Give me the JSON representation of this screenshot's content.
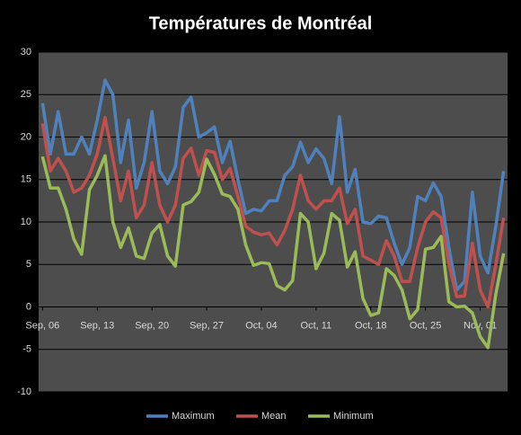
{
  "chart_data": {
    "type": "line",
    "title": "Températures de Montréal",
    "categories": [
      "Sep, 06",
      null,
      null,
      null,
      null,
      null,
      null,
      "Sep, 13",
      null,
      null,
      null,
      null,
      null,
      null,
      "Sep, 20",
      null,
      null,
      null,
      null,
      null,
      null,
      "Sep, 27",
      null,
      null,
      null,
      null,
      null,
      null,
      "Oct, 04",
      null,
      null,
      null,
      null,
      null,
      null,
      "Oct, 11",
      null,
      null,
      null,
      null,
      null,
      null,
      "Oct, 18",
      null,
      null,
      null,
      null,
      null,
      null,
      "Oct, 25",
      null,
      null,
      null,
      null,
      null,
      null,
      "Nov, 01",
      null,
      null,
      null
    ],
    "series": [
      {
        "name": "Maximum",
        "color": "#4f81bd",
        "values": [
          24,
          18,
          23,
          18,
          18,
          20,
          18,
          22,
          26.7,
          25,
          17,
          22,
          14,
          17,
          23,
          16,
          14.5,
          16.5,
          23.5,
          24.7,
          20,
          20.5,
          21.2,
          17,
          19.5,
          15,
          11,
          11.5,
          11.3,
          12.5,
          12.5,
          15.5,
          16.5,
          19.4,
          17,
          18.6,
          17.5,
          14.5,
          22.4,
          13.5,
          16.2,
          10,
          9.8,
          10.7,
          10.5,
          7.5,
          5,
          7,
          13,
          12.5,
          14.6,
          13,
          7,
          2,
          3,
          13.5,
          6,
          4,
          9.5,
          16
        ]
      },
      {
        "name": "Mean",
        "color": "#c0504d",
        "values": [
          21.6,
          16,
          17.5,
          16,
          13.5,
          14,
          15.5,
          18,
          22.3,
          17.5,
          12.5,
          16,
          10.5,
          12,
          17,
          12,
          10,
          12,
          17.5,
          18.7,
          15.5,
          18.4,
          18.2,
          15,
          16.3,
          13,
          9.5,
          8.8,
          8.5,
          8.7,
          7.3,
          9,
          11.5,
          15.5,
          12.5,
          11.5,
          12.5,
          12.5,
          14,
          9.8,
          11.5,
          6,
          5.5,
          5,
          7.8,
          6,
          3,
          3,
          7,
          10,
          11.2,
          10.5,
          5,
          1.2,
          1.3,
          7.5,
          2,
          0,
          5,
          10.5
        ]
      },
      {
        "name": "Minimum",
        "color": "#9bbb59",
        "values": [
          17.7,
          14,
          14,
          11.5,
          8,
          6.2,
          13.8,
          15.5,
          17.8,
          10,
          7,
          9.3,
          6,
          5.7,
          8.7,
          9.7,
          6,
          4.8,
          12,
          12.4,
          13.5,
          17.4,
          15.6,
          13.3,
          13,
          11.5,
          7.3,
          4.9,
          5.2,
          5.1,
          2.5,
          2,
          3.1,
          11,
          10,
          4.5,
          6.3,
          11,
          10.2,
          4.7,
          6.5,
          1,
          -1,
          -0.7,
          4.5,
          3.7,
          2,
          -1.4,
          -0.3,
          6.8,
          7,
          8.3,
          0.6,
          0,
          0.1,
          -0.7,
          -3.5,
          -4.8,
          1.5,
          6.3
        ]
      }
    ],
    "ylim": [
      -10,
      30
    ],
    "yticks": [
      -10,
      -5,
      0,
      5,
      10,
      15,
      20,
      25,
      30
    ],
    "grid": true,
    "legend": "bottom"
  }
}
